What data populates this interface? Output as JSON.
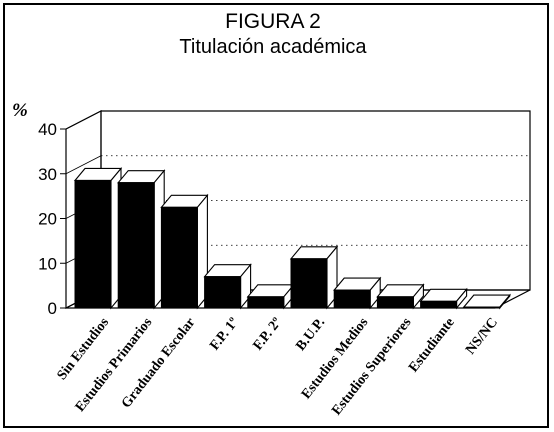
{
  "chart_data": {
    "type": "bar",
    "title": "FIGURA 2",
    "subtitle": "Titulación académica",
    "ylabel": "%",
    "ylim": [
      0,
      40
    ],
    "yticks": [
      "0",
      "10",
      "20",
      "30",
      "40"
    ],
    "grid": true,
    "categories": [
      "Sin Estudios",
      "Estudios Primarios",
      "Graduado Escolar",
      "F.P. 1º",
      "F.P. 2º",
      "B.U.P.",
      "Estudios Medios",
      "Estudios Superiores",
      "Estudiante",
      "NS/NC"
    ],
    "values": [
      28.5,
      28,
      22.5,
      7,
      2.5,
      11,
      4,
      2.5,
      1.5,
      0.2
    ],
    "colors": {
      "bar": "#000000",
      "background": "#ffffff",
      "grid": "#000000"
    }
  }
}
